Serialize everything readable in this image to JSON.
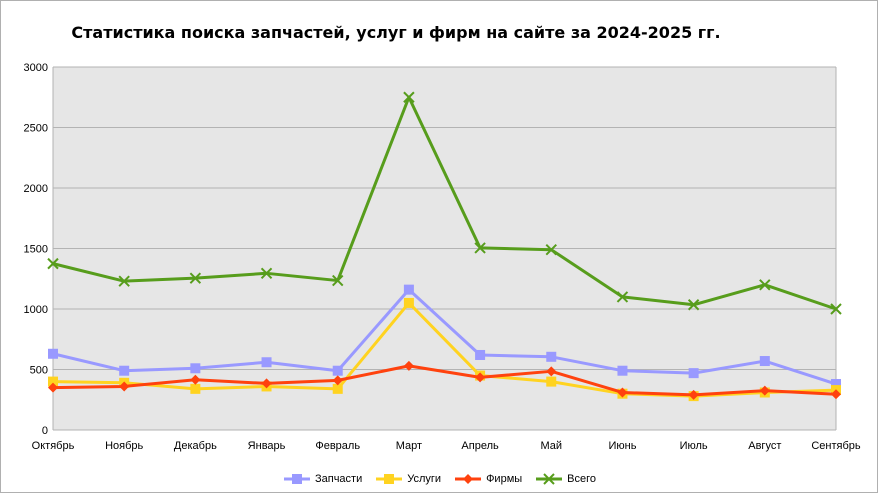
{
  "chart_data": {
    "type": "line",
    "title": "Статистика поиска запчастей, услуг и фирм на сайте за 2024-2025 гг.",
    "xlabel": "",
    "ylabel": "",
    "categories": [
      "Октябрь",
      "Ноябрь",
      "Декабрь",
      "Январь",
      "Февраль",
      "Март",
      "Апрель",
      "Май",
      "Июнь",
      "Июль",
      "Август",
      "Сентябрь"
    ],
    "ylim": [
      0,
      3000
    ],
    "yticks": [
      "0",
      "500",
      "1000",
      "1500",
      "2000",
      "2500",
      "3000"
    ],
    "grid": true,
    "legend_position": "bottom",
    "series": [
      {
        "name": "Запчасти",
        "color": "#9999ff",
        "marker": "square",
        "values": [
          630,
          490,
          510,
          560,
          490,
          1160,
          620,
          605,
          490,
          470,
          570,
          380
        ]
      },
      {
        "name": "Услуги",
        "color": "#ffd320",
        "marker": "square",
        "values": [
          400,
          390,
          340,
          360,
          340,
          1050,
          450,
          400,
          300,
          280,
          310,
          330
        ]
      },
      {
        "name": "Фирмы",
        "color": "#ff420e",
        "marker": "diamond",
        "values": [
          350,
          360,
          415,
          385,
          410,
          530,
          435,
          485,
          310,
          290,
          325,
          295
        ]
      },
      {
        "name": "Всего",
        "color": "#579d1c",
        "marker": "x",
        "values": [
          1375,
          1230,
          1255,
          1295,
          1235,
          2750,
          1505,
          1490,
          1100,
          1035,
          1200,
          1000
        ]
      }
    ]
  }
}
